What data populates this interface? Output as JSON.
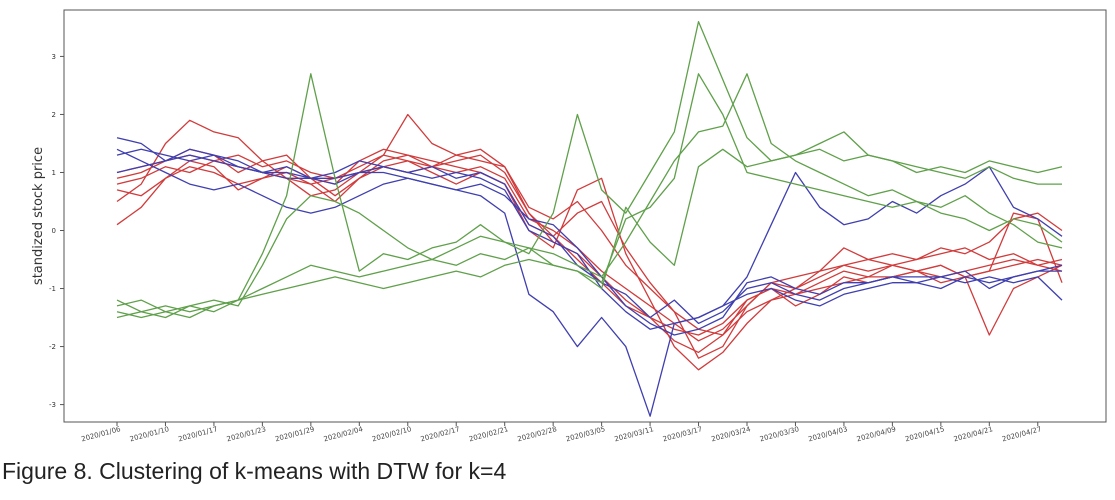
{
  "caption": "Figure 8. Clustering of k-means with DTW for k=4",
  "colors": {
    "red": "#d13b3b",
    "blue": "#3f3fb0",
    "green": "#5fa04a",
    "axis": "#555555"
  },
  "chart_data": {
    "type": "line",
    "title": "",
    "xlabel": "",
    "ylabel": "standized stock price",
    "ylim": [
      -3.3,
      3.8
    ],
    "yticks": [
      -3,
      -2,
      -1,
      0,
      1,
      2,
      3
    ],
    "grid": false,
    "legend": "none",
    "x": [
      "2020/01/06",
      "2020/01/08",
      "2020/01/10",
      "2020/01/14",
      "2020/01/17",
      "2020/01/21",
      "2020/01/23",
      "2020/01/28",
      "2020/01/29",
      "2020/01/31",
      "2020/02/04",
      "2020/02/06",
      "2020/02/10",
      "2020/02/12",
      "2020/02/17",
      "2020/02/19",
      "2020/02/21",
      "2020/02/25",
      "2020/02/28",
      "2020/03/03",
      "2020/03/05",
      "2020/03/09",
      "2020/03/11",
      "2020/03/13",
      "2020/03/17",
      "2020/03/19",
      "2020/03/24",
      "2020/03/26",
      "2020/03/30",
      "2020/04/01",
      "2020/04/03",
      "2020/04/07",
      "2020/04/09",
      "2020/04/13",
      "2020/04/15",
      "2020/04/17",
      "2020/04/21",
      "2020/04/23",
      "2020/04/27",
      "2020/04/29"
    ],
    "xticks": [
      "2020/01/06",
      "2020/01/10",
      "2020/01/17",
      "2020/01/23",
      "2020/01/29",
      "2020/02/04",
      "2020/02/10",
      "2020/02/17",
      "2020/02/21",
      "2020/02/28",
      "2020/03/05",
      "2020/03/11",
      "2020/03/17",
      "2020/03/24",
      "2020/03/30",
      "2020/04/03",
      "2020/04/09",
      "2020/04/15",
      "2020/04/21",
      "2020/04/27"
    ],
    "series": [
      {
        "color": "red",
        "values": [
          0.8,
          0.9,
          1.1,
          1.0,
          1.2,
          1.3,
          1.1,
          1.2,
          1.0,
          0.9,
          1.1,
          1.3,
          1.2,
          1.1,
          1.2,
          1.3,
          1.0,
          0.3,
          -0.2,
          -0.4,
          -0.8,
          -1.2,
          -1.5,
          -1.7,
          -1.8,
          -1.6,
          -1.2,
          -1.0,
          -1.1,
          -1.0,
          -0.9,
          -0.8,
          -0.8,
          -0.7,
          -0.8,
          -0.7,
          -0.6,
          -0.5,
          -0.6,
          -0.5
        ]
      },
      {
        "color": "red",
        "values": [
          1.0,
          1.1,
          1.2,
          1.3,
          1.2,
          1.1,
          1.0,
          0.9,
          0.8,
          0.9,
          1.0,
          1.1,
          1.0,
          1.1,
          1.0,
          1.1,
          0.9,
          0.2,
          0.0,
          -0.3,
          -0.7,
          -1.0,
          -1.3,
          -1.6,
          -1.9,
          -1.7,
          -1.3,
          -0.9,
          -1.0,
          -0.8,
          -0.6,
          -0.5,
          -0.4,
          -0.5,
          -0.3,
          -0.4,
          -0.2,
          0.2,
          0.3,
          0.0
        ]
      },
      {
        "color": "red",
        "values": [
          0.5,
          0.8,
          1.5,
          1.9,
          1.7,
          1.6,
          1.2,
          0.9,
          0.6,
          0.7,
          1.0,
          1.3,
          2.0,
          1.5,
          1.3,
          1.4,
          1.1,
          0.4,
          0.2,
          0.5,
          0.0,
          -0.6,
          -1.0,
          -1.4,
          -1.7,
          -1.8,
          -1.4,
          -1.2,
          -1.1,
          -0.9,
          -0.7,
          -0.8,
          -0.6,
          -0.5,
          -0.4,
          -0.3,
          -0.5,
          -0.4,
          -0.6,
          -0.7
        ]
      },
      {
        "color": "red",
        "values": [
          0.1,
          0.4,
          0.9,
          1.2,
          1.1,
          0.7,
          0.9,
          1.0,
          0.8,
          0.5,
          0.9,
          1.1,
          1.2,
          1.0,
          0.8,
          1.0,
          0.8,
          0.0,
          -0.3,
          0.7,
          0.9,
          -0.4,
          -1.2,
          -2.0,
          -2.4,
          -2.1,
          -1.6,
          -1.2,
          -1.0,
          -0.7,
          -0.3,
          -0.5,
          -0.6,
          -0.7,
          -0.6,
          -0.8,
          -1.8,
          -1.0,
          -0.8,
          -0.6
        ]
      },
      {
        "color": "red",
        "values": [
          0.9,
          1.0,
          1.2,
          1.4,
          1.3,
          1.0,
          1.2,
          1.3,
          0.9,
          0.8,
          1.2,
          1.4,
          1.3,
          1.2,
          1.1,
          1.0,
          0.8,
          0.1,
          -0.1,
          0.3,
          0.5,
          -0.3,
          -0.9,
          -1.4,
          -2.2,
          -2.0,
          -1.3,
          -0.9,
          -0.8,
          -0.7,
          -0.6,
          -0.7,
          -0.6,
          -0.7,
          -0.9,
          -0.8,
          -0.7,
          0.3,
          0.2,
          -0.9
        ]
      },
      {
        "color": "red",
        "values": [
          0.7,
          0.6,
          0.9,
          1.1,
          1.0,
          0.8,
          0.9,
          1.1,
          0.9,
          0.6,
          0.9,
          1.2,
          1.3,
          1.1,
          1.3,
          1.2,
          1.1,
          0.3,
          -0.1,
          -0.5,
          -0.9,
          -1.3,
          -1.5,
          -1.9,
          -2.1,
          -1.8,
          -1.2,
          -1.0,
          -1.3,
          -1.1,
          -0.8,
          -0.9,
          -0.8,
          -0.7,
          -0.6,
          -0.8,
          -0.7,
          -0.6,
          -0.5,
          -0.6
        ]
      },
      {
        "color": "blue",
        "values": [
          1.6,
          1.5,
          1.2,
          1.4,
          1.3,
          1.1,
          1.0,
          0.9,
          0.9,
          0.9,
          1.0,
          1.0,
          0.9,
          0.8,
          0.7,
          0.8,
          0.6,
          0.2,
          0.1,
          -0.3,
          -0.8,
          -1.3,
          -1.6,
          -1.8,
          -1.7,
          -1.5,
          -0.9,
          -0.8,
          -1.0,
          -1.1,
          -0.9,
          -0.9,
          -0.8,
          -0.8,
          -0.8,
          -0.7,
          -1.0,
          -0.8,
          -0.7,
          -0.6
        ]
      },
      {
        "color": "blue",
        "values": [
          1.4,
          1.2,
          1.0,
          0.8,
          0.7,
          0.8,
          0.6,
          0.4,
          0.3,
          0.4,
          0.6,
          0.8,
          0.9,
          0.8,
          0.7,
          0.6,
          0.3,
          -1.1,
          -1.4,
          -2.0,
          -1.5,
          -2.0,
          -3.2,
          -1.6,
          -1.5,
          -1.3,
          -0.8,
          0.1,
          1.0,
          0.4,
          0.1,
          0.2,
          0.5,
          0.3,
          0.6,
          0.8,
          1.1,
          0.4,
          0.2,
          -0.1
        ]
      },
      {
        "color": "blue",
        "values": [
          1.3,
          1.4,
          1.3,
          1.2,
          1.3,
          1.2,
          1.0,
          1.1,
          0.9,
          1.0,
          1.2,
          1.1,
          1.0,
          1.1,
          0.9,
          1.0,
          0.8,
          0.1,
          -0.1,
          -0.6,
          -0.9,
          -1.1,
          -1.5,
          -1.2,
          -1.6,
          -1.4,
          -1.0,
          -0.9,
          -1.1,
          -1.2,
          -1.0,
          -0.9,
          -0.8,
          -0.9,
          -0.8,
          -0.9,
          -0.8,
          -0.9,
          -0.8,
          -1.2
        ]
      },
      {
        "color": "blue",
        "values": [
          1.0,
          1.1,
          1.2,
          1.3,
          1.2,
          1.1,
          1.0,
          1.0,
          0.9,
          0.8,
          1.0,
          1.1,
          1.0,
          0.9,
          1.0,
          0.9,
          0.7,
          0.0,
          -0.2,
          -0.4,
          -1.0,
          -1.4,
          -1.7,
          -1.6,
          -1.5,
          -1.3,
          -1.1,
          -1.0,
          -1.2,
          -1.3,
          -1.1,
          -1.0,
          -0.9,
          -0.9,
          -1.0,
          -0.8,
          -0.9,
          -0.8,
          -0.7,
          -0.7
        ]
      },
      {
        "color": "green",
        "values": [
          -1.2,
          -1.4,
          -1.5,
          -1.3,
          -1.4,
          -1.2,
          -0.4,
          0.6,
          2.7,
          0.9,
          -0.7,
          -0.4,
          -0.5,
          -0.3,
          -0.2,
          0.1,
          -0.2,
          -0.4,
          0.3,
          2.0,
          0.7,
          0.3,
          1.0,
          1.7,
          3.6,
          2.6,
          1.6,
          1.2,
          1.3,
          1.5,
          1.7,
          1.3,
          1.2,
          1.1,
          1.0,
          0.9,
          1.1,
          0.9,
          0.8,
          0.8
        ]
      },
      {
        "color": "green",
        "values": [
          -1.4,
          -1.5,
          -1.4,
          -1.3,
          -1.2,
          -1.3,
          -0.6,
          0.2,
          0.6,
          0.5,
          0.3,
          0.0,
          -0.3,
          -0.5,
          -0.3,
          -0.1,
          -0.2,
          -0.3,
          -0.6,
          -0.7,
          -1.0,
          0.4,
          -0.2,
          -0.6,
          1.1,
          1.4,
          1.1,
          1.2,
          1.3,
          1.4,
          1.2,
          1.3,
          1.2,
          1.0,
          1.1,
          1.0,
          1.2,
          1.1,
          1.0,
          1.1
        ]
      },
      {
        "color": "green",
        "values": [
          -1.5,
          -1.4,
          -1.3,
          -1.4,
          -1.3,
          -1.2,
          -1.0,
          -0.8,
          -0.6,
          -0.7,
          -0.8,
          -0.7,
          -0.6,
          -0.5,
          -0.6,
          -0.4,
          -0.5,
          -0.3,
          -0.4,
          -0.6,
          -0.8,
          -0.2,
          0.5,
          1.2,
          1.7,
          1.8,
          2.7,
          1.5,
          1.2,
          1.0,
          0.8,
          0.6,
          0.7,
          0.5,
          0.4,
          0.6,
          0.3,
          0.1,
          -0.2,
          -0.3
        ]
      },
      {
        "color": "green",
        "values": [
          -1.3,
          -1.2,
          -1.4,
          -1.5,
          -1.3,
          -1.2,
          -1.1,
          -1.0,
          -0.9,
          -0.8,
          -0.9,
          -1.0,
          -0.9,
          -0.8,
          -0.7,
          -0.8,
          -0.6,
          -0.5,
          -0.6,
          -0.7,
          -0.9,
          0.2,
          0.4,
          0.9,
          2.7,
          2.0,
          1.0,
          0.9,
          0.8,
          0.7,
          0.6,
          0.5,
          0.4,
          0.5,
          0.3,
          0.2,
          0.0,
          0.2,
          0.1,
          -0.2
        ]
      }
    ]
  }
}
